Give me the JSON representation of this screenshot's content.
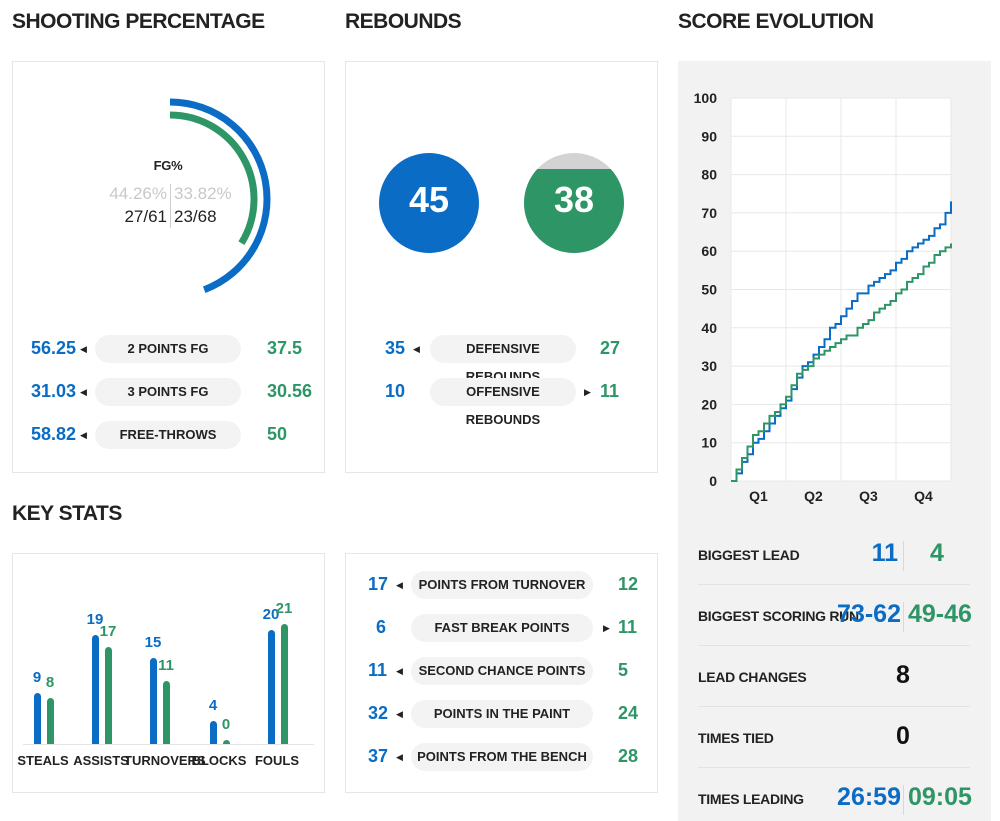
{
  "colors": {
    "team_a": "#0a6cc4",
    "team_b": "#2e9566",
    "grey": "#d0d0d0",
    "panel": "#f2f2f2"
  },
  "shooting": {
    "title": "SHOOTING PERCENTAGE",
    "fg_label": "FG%",
    "fg_a_pct": "44.26%",
    "fg_b_pct": "33.82%",
    "fg_a_made": "27/61",
    "fg_b_made": "23/68",
    "fg_a_fraction": 0.4426,
    "fg_b_fraction": 0.3382,
    "rows": [
      {
        "a": "56.25",
        "label": "2 POINTS FG",
        "b": "37.5",
        "arrow": "left"
      },
      {
        "a": "31.03",
        "label": "3 POINTS FG",
        "b": "30.56",
        "arrow": "left"
      },
      {
        "a": "58.82",
        "label": "FREE-THROWS",
        "b": "50",
        "arrow": "left"
      }
    ]
  },
  "rebounds": {
    "title": "REBOUNDS",
    "a_total": "45",
    "b_total": "38",
    "b_fill_fraction": 0.84,
    "rows": [
      {
        "a": "35",
        "label": "DEFENSIVE REBOUNDS",
        "b": "27",
        "arrow": "left"
      },
      {
        "a": "10",
        "label": "OFFENSIVE REBOUNDS",
        "b": "11",
        "arrow": "right"
      }
    ]
  },
  "key_stats": {
    "title": "KEY STATS",
    "bars": [
      {
        "label": "STEALS",
        "a": 9,
        "b": 8
      },
      {
        "label": "ASSISTS",
        "a": 19,
        "b": 17
      },
      {
        "label": "TURNOVERS",
        "a": 15,
        "b": 11
      },
      {
        "label": "BLOCKS",
        "a": 4,
        "b": 0
      },
      {
        "label": "FOULS",
        "a": 20,
        "b": 21
      }
    ]
  },
  "points": {
    "rows": [
      {
        "a": "17",
        "label": "POINTS FROM TURNOVER",
        "b": "12",
        "arrow": "left"
      },
      {
        "a": "6",
        "label": "FAST BREAK POINTS",
        "b": "11",
        "arrow": "right"
      },
      {
        "a": "11",
        "label": "SECOND CHANCE POINTS",
        "b": "5",
        "arrow": "left"
      },
      {
        "a": "32",
        "label": "POINTS IN THE PAINT",
        "b": "24",
        "arrow": "left"
      },
      {
        "a": "37",
        "label": "POINTS FROM THE BENCH",
        "b": "28",
        "arrow": "left"
      }
    ]
  },
  "score_evolution": {
    "title": "SCORE EVOLUTION",
    "stats": [
      {
        "label": "BIGGEST LEAD",
        "a": "11",
        "b": "4",
        "single": ""
      },
      {
        "label": "BIGGEST SCORING RUN",
        "a": "73-62",
        "b": "49-46",
        "single": ""
      },
      {
        "label": "LEAD CHANGES",
        "a": "",
        "b": "",
        "single": "8"
      },
      {
        "label": "TIMES TIED",
        "a": "",
        "b": "",
        "single": "0"
      },
      {
        "label": "TIMES LEADING",
        "a": "26:59",
        "b": "09:05",
        "single": ""
      }
    ]
  },
  "chart_data": {
    "type": "line",
    "title": "",
    "xlabel": "",
    "ylabel": "",
    "x_ticks": [
      "Q1",
      "Q2",
      "Q3",
      "Q4"
    ],
    "xlim": [
      0,
      40
    ],
    "ylim": [
      0,
      100
    ],
    "y_ticks": [
      0,
      10,
      20,
      30,
      40,
      50,
      60,
      70,
      80,
      90,
      100
    ],
    "grid": true,
    "series": [
      {
        "color": "#0a6cc4",
        "x": [
          0,
          1,
          2,
          3,
          4,
          5,
          6,
          7,
          8,
          9,
          10,
          11,
          12,
          13,
          14,
          15,
          16,
          17,
          18,
          19,
          20,
          21,
          22,
          23,
          24,
          25,
          26,
          27,
          28,
          29,
          30,
          31,
          32,
          33,
          34,
          35,
          36,
          37,
          38,
          39,
          40
        ],
        "values": [
          0,
          2,
          5,
          7,
          10,
          11,
          13,
          15,
          17,
          19,
          21,
          24,
          27,
          30,
          31,
          33,
          35,
          37,
          40,
          41,
          43,
          45,
          47,
          49,
          49,
          51,
          52,
          53,
          54,
          55,
          57,
          58,
          60,
          61,
          62,
          63,
          64,
          66,
          67,
          70,
          73
        ]
      },
      {
        "color": "#2e9566",
        "x": [
          0,
          1,
          2,
          3,
          4,
          5,
          6,
          7,
          8,
          9,
          10,
          11,
          12,
          13,
          14,
          15,
          16,
          17,
          18,
          19,
          20,
          21,
          22,
          23,
          24,
          25,
          26,
          27,
          28,
          29,
          30,
          31,
          32,
          33,
          34,
          35,
          36,
          37,
          38,
          39,
          40
        ],
        "values": [
          0,
          3,
          6,
          9,
          12,
          13,
          15,
          17,
          18,
          20,
          22,
          25,
          28,
          29,
          30,
          32,
          33,
          34,
          35,
          36,
          37,
          38,
          38,
          40,
          41,
          42,
          44,
          45,
          46,
          47,
          49,
          50,
          52,
          53,
          54,
          56,
          57,
          59,
          60,
          61,
          62
        ]
      }
    ]
  }
}
